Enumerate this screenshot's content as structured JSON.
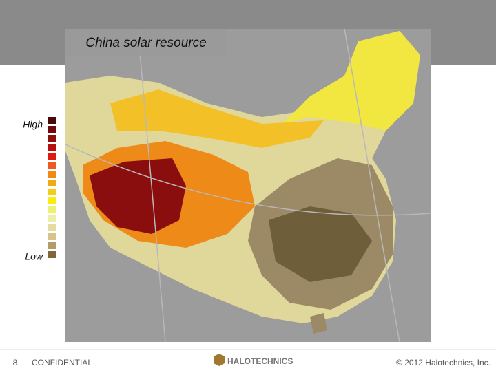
{
  "title": "China solar resource",
  "legend": {
    "high_label": "High",
    "low_label": "Low",
    "colors": [
      "#4a0808",
      "#6e0a0a",
      "#900e0e",
      "#b81010",
      "#e01a10",
      "#ee5a22",
      "#f08a14",
      "#f0aa14",
      "#f6cc14",
      "#f8ec10",
      "#eef070",
      "#eeeea6",
      "#e6dca0",
      "#d6c48c",
      "#b49c6a",
      "#7e6838"
    ]
  },
  "footer": {
    "page_number": "8",
    "confidential": "CONFIDENTIAL",
    "logo": "HALOTECHNICS",
    "copyright": "© 2012 Halotechnics, Inc."
  }
}
